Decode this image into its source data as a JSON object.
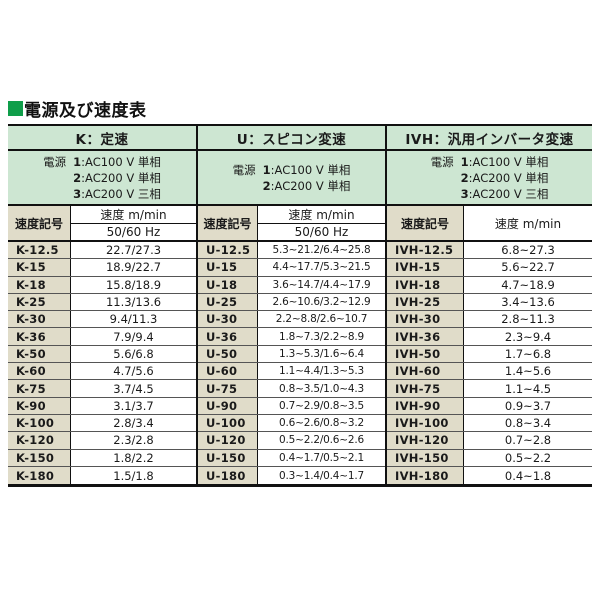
{
  "page_title": "電源及び速度表",
  "colors": {
    "accent_green": "#0f9e4a",
    "band_green": "#cde6d2",
    "cell_beige": "#e0dcc9",
    "border_dark": "#111111"
  },
  "table": {
    "sections": [
      {
        "id": "K",
        "header": "K：定速",
        "power_lines": [
          {
            "prefix": "電源",
            "num": "1",
            "value": ":AC100 V 単相"
          },
          {
            "prefix": "",
            "num": "2",
            "value": ":AC200 V 単相"
          },
          {
            "prefix": "",
            "num": "3",
            "value": ":AC200 V 三相"
          }
        ],
        "col_symbol": "速度記号",
        "col_speed": "速度 m/min",
        "col_speed_sub": "50/60 Hz",
        "rows": [
          {
            "symbol": "K-12.5",
            "value": "22.7/27.3"
          },
          {
            "symbol": "K-15",
            "value": "18.9/22.7"
          },
          {
            "symbol": "K-18",
            "value": "15.8/18.9"
          },
          {
            "symbol": "K-25",
            "value": "11.3/13.6"
          },
          {
            "symbol": "K-30",
            "value": "9.4/11.3"
          },
          {
            "symbol": "K-36",
            "value": "7.9/9.4"
          },
          {
            "symbol": "K-50",
            "value": "5.6/6.8"
          },
          {
            "symbol": "K-60",
            "value": "4.7/5.6"
          },
          {
            "symbol": "K-75",
            "value": "3.7/4.5"
          },
          {
            "symbol": "K-90",
            "value": "3.1/3.7"
          },
          {
            "symbol": "K-100",
            "value": "2.8/3.4"
          },
          {
            "symbol": "K-120",
            "value": "2.3/2.8"
          },
          {
            "symbol": "K-150",
            "value": "1.8/2.2"
          },
          {
            "symbol": "K-180",
            "value": "1.5/1.8"
          }
        ]
      },
      {
        "id": "U",
        "header": "U：スピコン変速",
        "power_lines": [
          {
            "prefix": "電源",
            "num": "1",
            "value": ":AC100 V 単相"
          },
          {
            "prefix": "",
            "num": "2",
            "value": ":AC200 V 単相"
          }
        ],
        "col_symbol": "速度記号",
        "col_speed": "速度 m/min",
        "col_speed_sub": "50/60 Hz",
        "rows": [
          {
            "symbol": "U-12.5",
            "value": "5.3~21.2/6.4~25.8"
          },
          {
            "symbol": "U-15",
            "value": "4.4~17.7/5.3~21.5"
          },
          {
            "symbol": "U-18",
            "value": "3.6~14.7/4.4~17.9"
          },
          {
            "symbol": "U-25",
            "value": "2.6~10.6/3.2~12.9"
          },
          {
            "symbol": "U-30",
            "value": "2.2~8.8/2.6~10.7"
          },
          {
            "symbol": "U-36",
            "value": "1.8~7.3/2.2~8.9"
          },
          {
            "symbol": "U-50",
            "value": "1.3~5.3/1.6~6.4"
          },
          {
            "symbol": "U-60",
            "value": "1.1~4.4/1.3~5.3"
          },
          {
            "symbol": "U-75",
            "value": "0.8~3.5/1.0~4.3"
          },
          {
            "symbol": "U-90",
            "value": "0.7~2.9/0.8~3.5"
          },
          {
            "symbol": "U-100",
            "value": "0.6~2.6/0.8~3.2"
          },
          {
            "symbol": "U-120",
            "value": "0.5~2.2/0.6~2.6"
          },
          {
            "symbol": "U-150",
            "value": "0.4~1.7/0.5~2.1"
          },
          {
            "symbol": "U-180",
            "value": "0.3~1.4/0.4~1.7"
          }
        ]
      },
      {
        "id": "IVH",
        "header": "IVH：汎用インバータ変速",
        "power_lines": [
          {
            "prefix": "電源",
            "num": "1",
            "value": ":AC100 V 単相"
          },
          {
            "prefix": "",
            "num": "2",
            "value": ":AC200 V 単相"
          },
          {
            "prefix": "",
            "num": "3",
            "value": ":AC200 V 三相"
          }
        ],
        "col_symbol": "速度記号",
        "col_speed": "速度 m/min",
        "col_speed_sub": null,
        "rows": [
          {
            "symbol": "IVH-12.5",
            "value": "6.8~27.3"
          },
          {
            "symbol": "IVH-15",
            "value": "5.6~22.7"
          },
          {
            "symbol": "IVH-18",
            "value": "4.7~18.9"
          },
          {
            "symbol": "IVH-25",
            "value": "3.4~13.6"
          },
          {
            "symbol": "IVH-30",
            "value": "2.8~11.3"
          },
          {
            "symbol": "IVH-36",
            "value": "2.3~9.4"
          },
          {
            "symbol": "IVH-50",
            "value": "1.7~6.8"
          },
          {
            "symbol": "IVH-60",
            "value": "1.4~5.6"
          },
          {
            "symbol": "IVH-75",
            "value": "1.1~4.5"
          },
          {
            "symbol": "IVH-90",
            "value": "0.9~3.7"
          },
          {
            "symbol": "IVH-100",
            "value": "0.8~3.4"
          },
          {
            "symbol": "IVH-120",
            "value": "0.7~2.8"
          },
          {
            "symbol": "IVH-150",
            "value": "0.5~2.2"
          },
          {
            "symbol": "IVH-180",
            "value": "0.4~1.8"
          }
        ]
      }
    ]
  }
}
